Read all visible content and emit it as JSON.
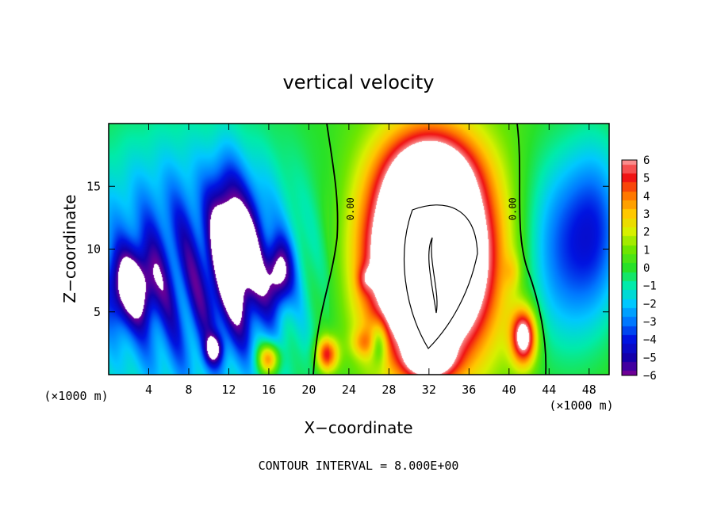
{
  "chart_data": {
    "type": "heatmap",
    "title": "vertical velocity",
    "xlabel": "X−coordinate",
    "ylabel": "Z−coordinate",
    "x_unit_left": "(×1000 m)",
    "x_unit_right": "(×1000 m)",
    "footer": "CONTOUR INTERVAL = 8.000E+00",
    "xlim": [
      0,
      50
    ],
    "ylim": [
      0,
      20
    ],
    "xticks": [
      {
        "value": 4,
        "label": "4"
      },
      {
        "value": 8,
        "label": "8"
      },
      {
        "value": 12,
        "label": "12"
      },
      {
        "value": 16,
        "label": "16"
      },
      {
        "value": 20,
        "label": "20"
      },
      {
        "value": 24,
        "label": "24"
      },
      {
        "value": 28,
        "label": "28"
      },
      {
        "value": 32,
        "label": "32"
      },
      {
        "value": 36,
        "label": "36"
      },
      {
        "value": 40,
        "label": "40"
      },
      {
        "value": 44,
        "label": "44"
      },
      {
        "value": 48,
        "label": "48"
      }
    ],
    "yticks": [
      {
        "value": 5,
        "label": "5"
      },
      {
        "value": 10,
        "label": "10"
      },
      {
        "value": 15,
        "label": "15"
      }
    ],
    "colorbar": {
      "min": -6,
      "max": 6,
      "ticks": [
        {
          "value": 6,
          "label": "6"
        },
        {
          "value": 5,
          "label": "5"
        },
        {
          "value": 4,
          "label": "4"
        },
        {
          "value": 3,
          "label": "3"
        },
        {
          "value": 2,
          "label": "2"
        },
        {
          "value": 1,
          "label": "1"
        },
        {
          "value": 0,
          "label": "0"
        },
        {
          "value": -1,
          "label": "−1"
        },
        {
          "value": -2,
          "label": "−2"
        },
        {
          "value": -3,
          "label": "−3"
        },
        {
          "value": -4,
          "label": "−4"
        },
        {
          "value": -5,
          "label": "−5"
        },
        {
          "value": -6,
          "label": "−6"
        }
      ]
    },
    "contour_labels": [
      {
        "x": 24.5,
        "z": 13.2,
        "text": "0.00"
      },
      {
        "x": 40.7,
        "z": 13.2,
        "text": "0.00"
      }
    ],
    "features": [
      {
        "kind": "updraft",
        "x": 32.0,
        "z": 9.5,
        "sx": 4.2,
        "sz": 5.6,
        "amp": 16
      },
      {
        "kind": "updraft",
        "x": 32.2,
        "z": 16.0,
        "sx": 3.0,
        "sz": 2.2,
        "amp": 3
      },
      {
        "kind": "updraft",
        "x": 32.0,
        "z": 1.2,
        "sx": 1.6,
        "sz": 1.0,
        "amp": 5
      },
      {
        "kind": "updraft",
        "x": 41.5,
        "z": 3.0,
        "sx": 0.9,
        "sz": 1.6,
        "amp": 7
      },
      {
        "kind": "updraft",
        "x": 16.0,
        "z": 1.3,
        "sx": 0.8,
        "sz": 0.9,
        "amp": 5
      },
      {
        "kind": "updraft",
        "x": 21.8,
        "z": 1.6,
        "sx": 0.8,
        "sz": 1.0,
        "amp": 5
      },
      {
        "kind": "updraft",
        "x": 25.5,
        "z": 2.5,
        "sx": 0.9,
        "sz": 0.8,
        "amp": 2
      },
      {
        "kind": "updraft",
        "x": 25.6,
        "z": 7.6,
        "sx": 0.6,
        "sz": 0.8,
        "amp": 1.5
      },
      {
        "kind": "updraft",
        "x": 40.4,
        "z": 8.2,
        "sx": 0.6,
        "sz": 1.0,
        "amp": 1.2
      },
      {
        "kind": "downdraft",
        "x": 8.0,
        "z": 8.0,
        "sx": 8.5,
        "sz": 7.5,
        "amp": -4.6
      },
      {
        "kind": "downdraft",
        "x": 2.3,
        "z": 7.0,
        "sx": 1.6,
        "sz": 2.0,
        "amp": -5
      },
      {
        "kind": "downdraft",
        "x": 11.8,
        "z": 10.5,
        "sx": 1.2,
        "sz": 4.0,
        "amp": -5
      },
      {
        "kind": "downdraft",
        "x": 14.0,
        "z": 9.0,
        "sx": 1.2,
        "sz": 3.5,
        "amp": -4
      },
      {
        "kind": "downdraft",
        "x": 17.0,
        "z": 8.0,
        "sx": 0.9,
        "sz": 1.8,
        "amp": -5
      },
      {
        "kind": "downdraft",
        "x": 10.5,
        "z": 2.0,
        "sx": 0.6,
        "sz": 0.8,
        "amp": -4
      },
      {
        "kind": "downdraft",
        "x": 27.0,
        "z": 2.5,
        "sx": 0.6,
        "sz": 1.2,
        "amp": -3
      },
      {
        "kind": "downdraft",
        "x": 45.5,
        "z": 10.0,
        "sx": 3.0,
        "sz": 5.5,
        "amp": -3.6
      },
      {
        "kind": "downdraft",
        "x": 49.0,
        "z": 12.0,
        "sx": 2.0,
        "sz": 5.0,
        "amp": -2.5
      }
    ]
  }
}
